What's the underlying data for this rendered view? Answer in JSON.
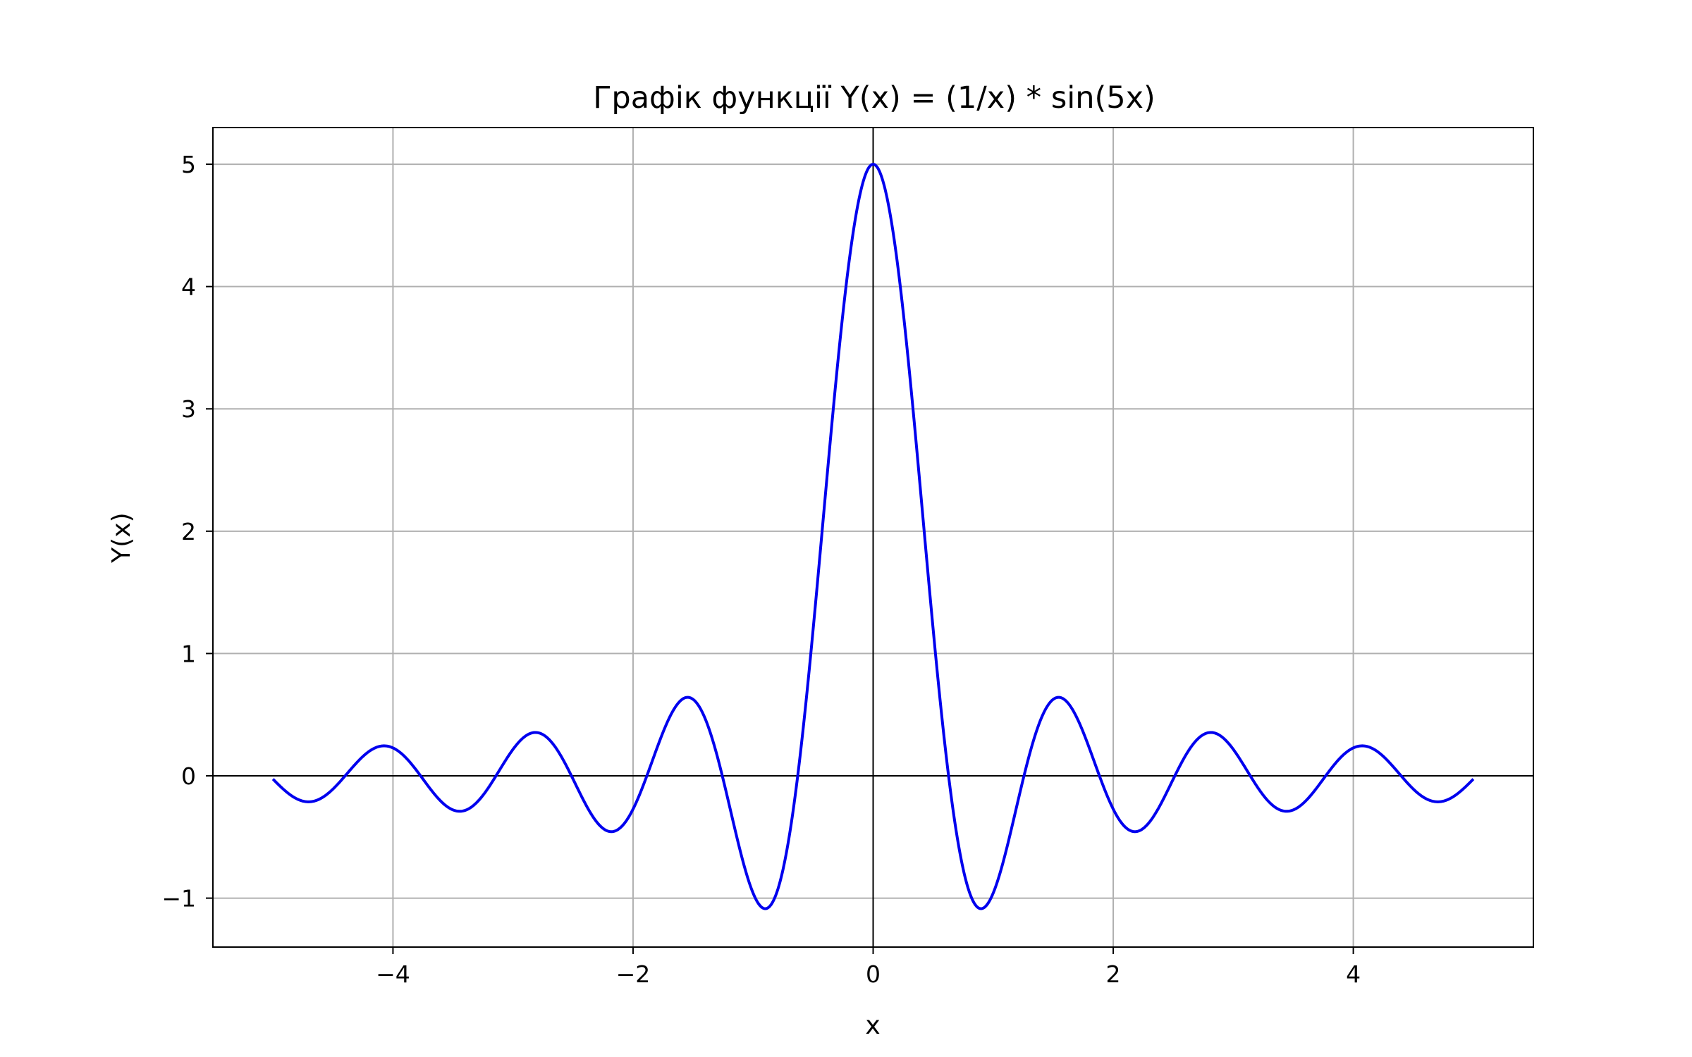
{
  "chart_data": {
    "type": "line",
    "title": "Графік функції Y(x) = (1/x) * sin(5x)",
    "xlabel": "x",
    "ylabel": "Y(x)",
    "xlim": [
      -5.5,
      5.5
    ],
    "ylim": [
      -1.4,
      5.3
    ],
    "x_ticks": [
      -4,
      -2,
      0,
      2,
      4
    ],
    "x_tick_labels": [
      "−4",
      "−2",
      "0",
      "2",
      "4"
    ],
    "y_ticks": [
      -1,
      0,
      1,
      2,
      3,
      4,
      5
    ],
    "y_tick_labels": [
      "−1",
      "0",
      "1",
      "2",
      "3",
      "4",
      "5"
    ],
    "grid": true,
    "zero_lines": true,
    "series": [
      {
        "color": "#0000ee",
        "x_range": [
          -5,
          5
        ],
        "points": [
          [
            -5.0,
            -0.026
          ],
          [
            -4.8,
            -0.173
          ],
          [
            -4.7,
            -0.21
          ],
          [
            -4.6,
            -0.182
          ],
          [
            -4.4,
            -0.021
          ],
          [
            -4.2,
            0.199
          ],
          [
            -4.08,
            0.249
          ],
          [
            -3.95,
            0.19
          ],
          [
            -3.8,
            0.003
          ],
          [
            -3.6,
            -0.225
          ],
          [
            -3.46,
            -0.286
          ],
          [
            -3.3,
            -0.211
          ],
          [
            -3.14,
            0.0
          ],
          [
            -2.95,
            0.279
          ],
          [
            -2.83,
            0.357
          ],
          [
            -2.7,
            0.28
          ],
          [
            -2.5,
            -0.019
          ],
          [
            -2.35,
            -0.305
          ],
          [
            -2.2,
            -0.454
          ],
          [
            -2.05,
            -0.351
          ],
          [
            -1.9,
            0.03
          ],
          [
            -1.75,
            0.422
          ],
          [
            -1.55,
            0.645
          ],
          [
            -1.4,
            0.47
          ],
          [
            -1.25,
            -0.026
          ],
          [
            -1.1,
            -0.641
          ],
          [
            -0.95,
            -1.05
          ],
          [
            -0.9,
            -1.085
          ],
          [
            -0.8,
            -0.946
          ],
          [
            -0.7,
            -0.5
          ],
          [
            -0.6,
            0.235
          ],
          [
            -0.5,
            1.197
          ],
          [
            -0.4,
            2.273
          ],
          [
            -0.3,
            3.325
          ],
          [
            -0.2,
            4.207
          ],
          [
            -0.1,
            4.794
          ],
          [
            0.0,
            5.0
          ],
          [
            0.1,
            4.794
          ],
          [
            0.2,
            4.207
          ],
          [
            0.3,
            3.325
          ],
          [
            0.4,
            2.273
          ],
          [
            0.5,
            1.197
          ],
          [
            0.6,
            0.235
          ],
          [
            0.7,
            -0.5
          ],
          [
            0.8,
            -0.946
          ],
          [
            0.9,
            -1.085
          ],
          [
            0.95,
            -1.05
          ],
          [
            1.1,
            -0.641
          ],
          [
            1.25,
            -0.026
          ],
          [
            1.4,
            0.47
          ],
          [
            1.55,
            0.645
          ],
          [
            1.75,
            0.422
          ],
          [
            1.9,
            0.03
          ],
          [
            2.05,
            -0.351
          ],
          [
            2.2,
            -0.454
          ],
          [
            2.35,
            -0.305
          ],
          [
            2.5,
            -0.019
          ],
          [
            2.7,
            0.28
          ],
          [
            2.83,
            0.357
          ],
          [
            2.95,
            0.279
          ],
          [
            3.14,
            0.0
          ],
          [
            3.3,
            -0.211
          ],
          [
            3.46,
            -0.286
          ],
          [
            3.6,
            -0.225
          ],
          [
            3.8,
            0.003
          ],
          [
            3.95,
            0.19
          ],
          [
            4.08,
            0.249
          ],
          [
            4.2,
            0.199
          ],
          [
            4.4,
            -0.021
          ],
          [
            4.6,
            -0.182
          ],
          [
            4.7,
            -0.21
          ],
          [
            4.8,
            -0.173
          ],
          [
            5.0,
            -0.026
          ]
        ]
      }
    ]
  }
}
